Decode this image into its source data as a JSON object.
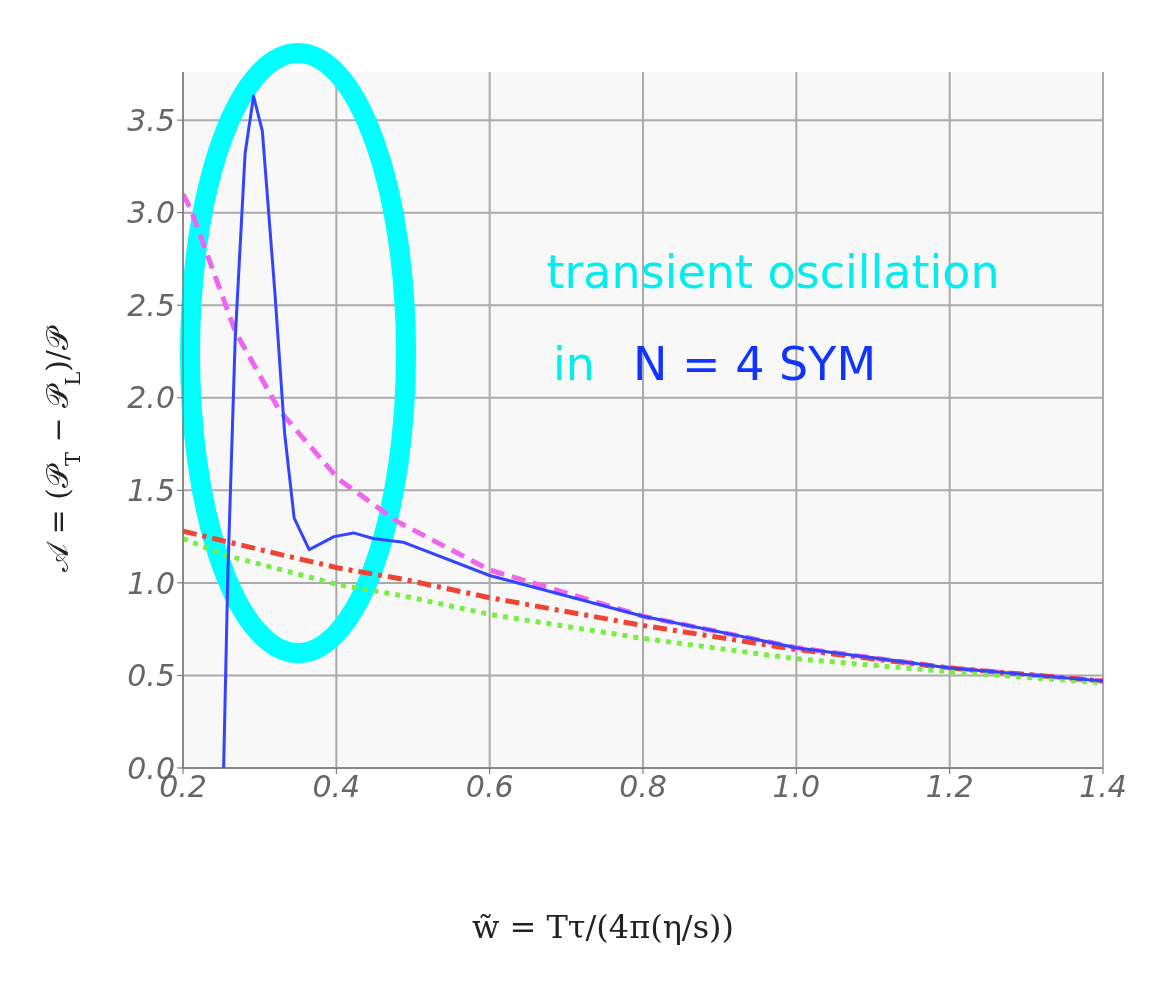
{
  "chart_data": {
    "type": "line",
    "xlabel": "w̃ = Tτ/(4π(η/s))",
    "ylabel": "𝒜 = (𝒫$_{T}$ − 𝒫$_{L}$)/𝒫",
    "annotations": [
      "transient oscillation",
      "in",
      "N = 4 SYM"
    ],
    "xlim": [
      0.2,
      1.4
    ],
    "xticks": [
      0.2,
      0.4,
      0.6,
      0.8,
      {
        "value": 1.0,
        "label": "1.0"
      },
      1.2,
      1.4
    ],
    "ylim": [
      0,
      3.76
    ],
    "yticks": [
      {
        "value": 0,
        "label": "0.0"
      },
      0.5,
      {
        "value": 1,
        "label": "1.0"
      },
      1.5,
      {
        "value": 2,
        "label": "2.0"
      },
      2.5,
      {
        "value": 3,
        "label": "3.0"
      },
      3.5
    ],
    "grid": true,
    "series": [
      {
        "color": "#ee66ee",
        "line_style": "dashed",
        "x": [
          0.2,
          0.21,
          0.268,
          0.326,
          0.403,
          0.48,
          0.6,
          0.8,
          1.0,
          1.2,
          1.4
        ],
        "values": [
          3.1,
          3.02,
          2.36,
          1.93,
          1.56,
          1.33,
          1.07,
          0.82,
          0.65,
          0.54,
          0.47
        ]
      },
      {
        "color": "#ee4433",
        "line_style": "dashdot",
        "x": [
          0.2,
          0.3,
          0.403,
          0.487,
          0.6,
          0.8,
          1.0,
          1.2,
          1.4
        ],
        "values": [
          1.28,
          1.18,
          1.08,
          1.02,
          0.92,
          0.77,
          0.64,
          0.54,
          0.47
        ]
      },
      {
        "color": "#77ee44",
        "line_style": "dotted",
        "x": [
          0.2,
          0.255,
          0.403,
          0.487,
          0.6,
          0.8,
          1.0,
          1.2,
          1.4
        ],
        "values": [
          1.24,
          1.15,
          0.99,
          0.93,
          0.83,
          0.7,
          0.59,
          0.52,
          0.46
        ]
      },
      {
        "color": "#3344ff",
        "line_style": "solid",
        "x": [
          0.253,
          0.2585,
          0.268,
          0.281,
          0.292,
          0.3035,
          0.32,
          0.3325,
          0.345,
          0.3646,
          0.397,
          0.4225,
          0.448,
          0.487,
          0.6,
          0.8,
          1.0,
          1.2,
          1.4
        ],
        "values": [
          0,
          1.05,
          2.31,
          3.32,
          3.63,
          3.44,
          2.56,
          1.81,
          1.35,
          1.18,
          1.25,
          1.27,
          1.24,
          1.22,
          1.04,
          0.82,
          0.65,
          0.54,
          0.47
        ]
      }
    ]
  }
}
